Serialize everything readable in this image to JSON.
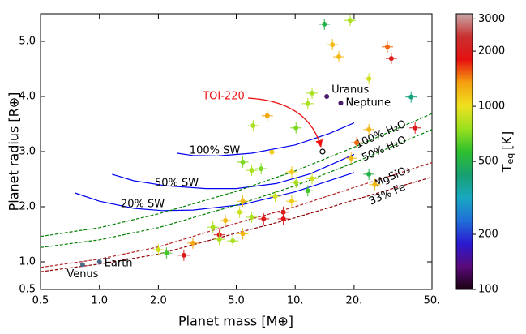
{
  "chart_data": {
    "type": "scatter",
    "x_label": "Planet mass [M⊕]",
    "y_label": "Planet radius [R⊕]",
    "xscale": "log",
    "xlim": [
      0.5,
      50
    ],
    "ylim": [
      0.5,
      5.5
    ],
    "xticks": [
      {
        "value": 0.5,
        "label": "0.5"
      },
      {
        "value": 1,
        "label": "1.0"
      },
      {
        "value": 2,
        "label": "2.0"
      },
      {
        "value": 5,
        "label": "5.0"
      },
      {
        "value": 10,
        "label": "10."
      },
      {
        "value": 20,
        "label": "20."
      },
      {
        "value": 50,
        "label": "50."
      }
    ],
    "yticks": [
      {
        "value": 0.5,
        "label": "0.5"
      },
      {
        "value": 1,
        "label": "1.0"
      },
      {
        "value": 2,
        "label": "2.0"
      },
      {
        "value": 3,
        "label": "3.0"
      },
      {
        "value": 4,
        "label": "4.0"
      },
      {
        "value": 5,
        "label": "5.0"
      }
    ],
    "colorbar_label": [
      "T",
      "eq",
      "[K]"
    ],
    "clim": [
      100,
      3200
    ],
    "cticks": [
      100,
      200,
      500,
      1000,
      2000,
      3000
    ],
    "colormap": [
      "#1a0010",
      "#5a0a7a",
      "#2a1ad0",
      "#1f6fd8",
      "#18a8c0",
      "#18a070",
      "#2ec02e",
      "#9ae01e",
      "#f0e020",
      "#f4a010",
      "#e61010",
      "#c83030",
      "#c8a8a8"
    ],
    "points": {
      "x": [
        14.1,
        19.1,
        15.5,
        16.7,
        29.6,
        31,
        23.8,
        39.1,
        41,
        23.8,
        20.6,
        19.3,
        23.8,
        25.5,
        12.2,
        11.6,
        10.1,
        7.2,
        6.1,
        7.6,
        5.4,
        6.0,
        6.7,
        9.6,
        10.1,
        12.2,
        7.9,
        11.6,
        9.6,
        5.4,
        5.2,
        6.0,
        4.4,
        8.7,
        8.7,
        6.9,
        4.1,
        3.8,
        5.4,
        3.0,
        4.1,
        4.8,
        2.0,
        2.2,
        2.7
      ],
      "y": [
        5.31,
        5.38,
        4.94,
        4.72,
        4.9,
        4.69,
        4.32,
        3.99,
        3.43,
        3.4,
        3.16,
        2.88,
        2.59,
        2.4,
        4.06,
        3.87,
        3.43,
        3.65,
        3.47,
        2.99,
        2.81,
        2.66,
        2.69,
        2.63,
        2.44,
        2.51,
        2.19,
        2.29,
        2.1,
        2.1,
        1.9,
        1.81,
        1.75,
        1.9,
        1.78,
        1.78,
        1.49,
        1.63,
        1.51,
        1.34,
        1.41,
        1.38,
        1.22,
        1.16,
        1.12
      ],
      "teq": [
        500,
        800,
        1200,
        1200,
        1500,
        2000,
        900,
        400,
        2000,
        1200,
        1500,
        1200,
        500,
        1200,
        800,
        800,
        700,
        1300,
        800,
        1100,
        700,
        800,
        700,
        1100,
        800,
        900,
        900,
        600,
        1100,
        1200,
        900,
        800,
        1200,
        2000,
        1900,
        2000,
        2000,
        800,
        1200,
        1300,
        800,
        800,
        900,
        600,
        2000
      ]
    },
    "curves": [
      {
        "name": "100% SW",
        "color": "#0000ee",
        "style": "solid",
        "x": [
          2.5,
          3,
          4,
          6,
          10,
          15,
          20
        ],
        "y": [
          2.97,
          2.93,
          2.92,
          2.97,
          3.12,
          3.33,
          3.52
        ]
      },
      {
        "name": "50% SW",
        "color": "#0000ee",
        "style": "solid",
        "x": [
          1.16,
          1.5,
          2.2,
          3.5,
          5,
          8,
          12,
          20
        ],
        "y": [
          2.59,
          2.47,
          2.38,
          2.33,
          2.33,
          2.42,
          2.6,
          2.95
        ]
      },
      {
        "name": "20% SW",
        "color": "#0000ee",
        "style": "solid",
        "x": [
          0.75,
          1,
          1.5,
          2.1,
          3,
          5.4,
          10,
          20
        ],
        "y": [
          2.25,
          2.1,
          1.97,
          1.93,
          1.94,
          2.04,
          2.27,
          2.62
        ]
      },
      {
        "name": "100% H₂O",
        "color": "#008000",
        "style": "dashed",
        "x": [
          0.5,
          1,
          2,
          5,
          10,
          20,
          50
        ],
        "y": [
          1.46,
          1.62,
          1.87,
          2.28,
          2.65,
          3.08,
          3.69
        ]
      },
      {
        "name": "50% H₂O",
        "color": "#008000",
        "style": "dashed",
        "x": [
          0.5,
          1,
          2,
          5,
          10,
          20,
          50
        ],
        "y": [
          1.26,
          1.4,
          1.62,
          2.03,
          2.38,
          2.8,
          3.4
        ]
      },
      {
        "name": "MgSiO₃",
        "color": "#b22222",
        "style": "dashed",
        "x": [
          0.5,
          1,
          2,
          5,
          10,
          20,
          50
        ],
        "y": [
          0.9,
          1.05,
          1.27,
          1.7,
          2.0,
          2.35,
          2.8
        ]
      },
      {
        "name": "33% Fe",
        "color": "#8b0000",
        "style": "dashed",
        "x": [
          0.5,
          1,
          2,
          5,
          10,
          20,
          50
        ],
        "y": [
          0.82,
          0.96,
          1.14,
          1.52,
          1.8,
          2.12,
          2.54
        ]
      }
    ],
    "solar_system": [
      {
        "name": "Venus",
        "x": 0.82,
        "y": 0.95,
        "color": "#4c6a8a"
      },
      {
        "name": "Earth",
        "x": 1,
        "y": 1,
        "color": "#4c6a8a"
      },
      {
        "name": "Uranus",
        "x": 14.5,
        "y": 4.0,
        "color": "#4b1a6b"
      },
      {
        "name": "Neptune",
        "x": 17.1,
        "y": 3.88,
        "color": "#4b1a6b"
      }
    ],
    "target": {
      "name": "TOI-220",
      "x": 13.8,
      "y": 3.0,
      "color": "#ee1111"
    }
  }
}
